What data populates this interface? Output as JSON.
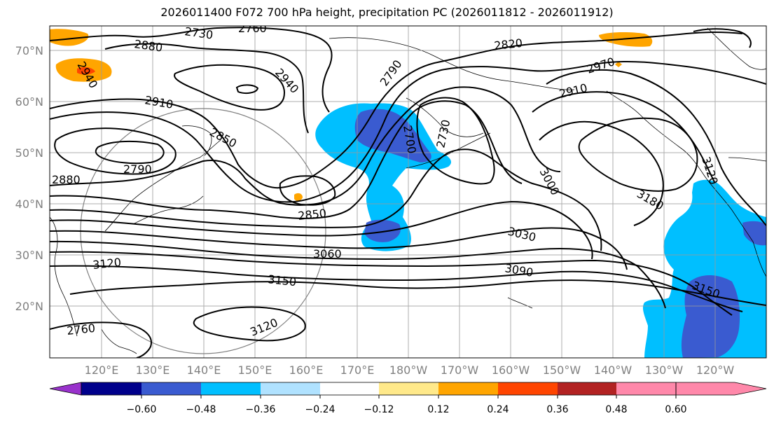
{
  "title": "2026011400 F072 700 hPa height, precipitation PC (2026011812 - 2026011912)",
  "lat_labels": [
    "70°N",
    "60°N",
    "50°N",
    "40°N",
    "30°N",
    "20°N"
  ],
  "lon_labels": [
    "120°E",
    "130°E",
    "140°E",
    "150°E",
    "160°E",
    "170°E",
    "180°W",
    "170°W",
    "160°W",
    "150°W",
    "140°W",
    "130°W",
    "120°W"
  ],
  "contour_labels": [
    "2730",
    "2760",
    "2880",
    "2940",
    "2910",
    "2850",
    "2790",
    "2880",
    "2940",
    "2850",
    "2790",
    "2700",
    "2730",
    "2820",
    "2910",
    "2970",
    "3000",
    "3030",
    "3060",
    "3090",
    "3120",
    "3150",
    "3180",
    "3120",
    "3150",
    "3120",
    "2760"
  ],
  "colorbar": {
    "tick_labels": [
      "−0.60",
      "−0.48",
      "−0.36",
      "−0.24",
      "−0.12",
      "0.12",
      "0.24",
      "0.36",
      "0.48",
      "0.60"
    ],
    "colors": [
      "#9932cc",
      "#00008b",
      "#3a5bd0",
      "#00bfff",
      "#b0e2ff",
      "#ffffff",
      "#ffe98a",
      "#ffa500",
      "#ff4500",
      "#b22222",
      "#ff88aa"
    ]
  },
  "shading_colors": {
    "orange": "#ffa500",
    "red": "#ff4500",
    "light_blue": "#00bfff",
    "royal_blue": "#3a5bd0"
  }
}
